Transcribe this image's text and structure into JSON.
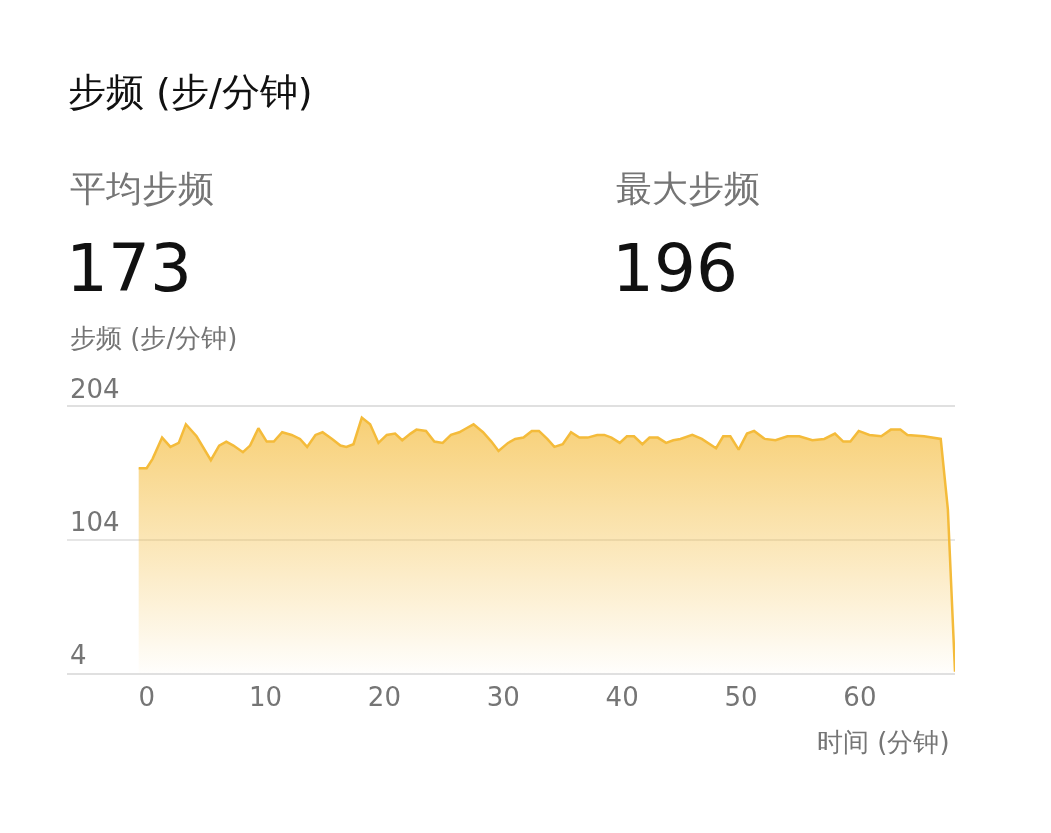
{
  "chart_data": {
    "type": "area",
    "title": "步频 (步/分钟)",
    "ylabel": "步频 (步/分钟)",
    "xlabel": "时间 (分钟)",
    "annotations": [
      "平均步频",
      "173",
      "最大步频",
      "196"
    ],
    "x": [
      -0.67,
      0,
      0.5,
      1.3,
      2.0,
      2.7,
      3.3,
      4.2,
      5.4,
      6.1,
      6.7,
      7.3,
      8.1,
      8.7,
      9.4,
      10.1,
      10.7,
      11.4,
      12.2,
      12.9,
      13.5,
      14.2,
      14.8,
      15.6,
      16.3,
      16.8,
      17.4,
      18.1,
      18.8,
      19.5,
      20.2,
      20.9,
      21.5,
      22.2,
      22.7,
      23.5,
      24.2,
      24.9,
      25.6,
      26.3,
      26.9,
      27.5,
      28.3,
      29.0,
      29.6,
      30.4,
      31.0,
      31.7,
      32.4,
      33.0,
      33.7,
      34.3,
      35.0,
      35.7,
      36.4,
      37.1,
      37.9,
      38.5,
      39.1,
      39.8,
      40.4,
      41.0,
      41.7,
      42.3,
      43.0,
      43.7,
      44.3,
      44.9,
      45.9,
      46.7,
      47.9,
      48.5,
      49.1,
      49.8,
      50.5,
      51.1,
      52.0,
      52.9,
      53.9,
      54.9,
      56.0,
      57.0,
      57.9,
      58.6,
      59.2,
      59.9,
      60.8,
      61.8,
      62.6,
      63.4,
      64.0,
      65.4,
      66.8,
      67.4,
      68.0
    ],
    "series": [
      {
        "color": "#f4bb3a",
        "values": [
          158,
          158,
          165,
          181,
          174,
          177,
          191,
          182,
          164,
          175,
          178,
          175,
          170,
          175,
          188,
          178,
          178,
          185,
          183,
          180,
          174,
          183,
          185,
          180,
          175,
          174,
          176,
          196,
          191,
          177,
          183,
          184,
          179,
          184,
          187,
          186,
          178,
          177,
          183,
          185,
          188,
          191,
          185,
          178,
          171,
          177,
          180,
          181,
          186,
          186,
          180,
          174,
          176,
          185,
          181,
          181,
          183,
          183,
          181,
          177,
          182,
          182,
          176,
          181,
          181,
          177,
          179,
          180,
          183,
          180,
          173,
          182,
          182,
          172,
          184,
          186,
          180,
          179,
          182,
          182,
          179,
          180,
          184,
          178,
          178,
          186,
          183,
          182,
          187,
          187,
          183,
          182,
          180,
          127,
          5
        ]
      }
    ],
    "xlim": [
      -6.7,
      68
    ],
    "ylim": [
      4,
      204
    ],
    "xticks": [
      0,
      10,
      20,
      30,
      40,
      50,
      60
    ],
    "yticks": [
      4,
      104,
      204
    ],
    "grid": "y",
    "marker": "none",
    "line_style": "solid"
  }
}
